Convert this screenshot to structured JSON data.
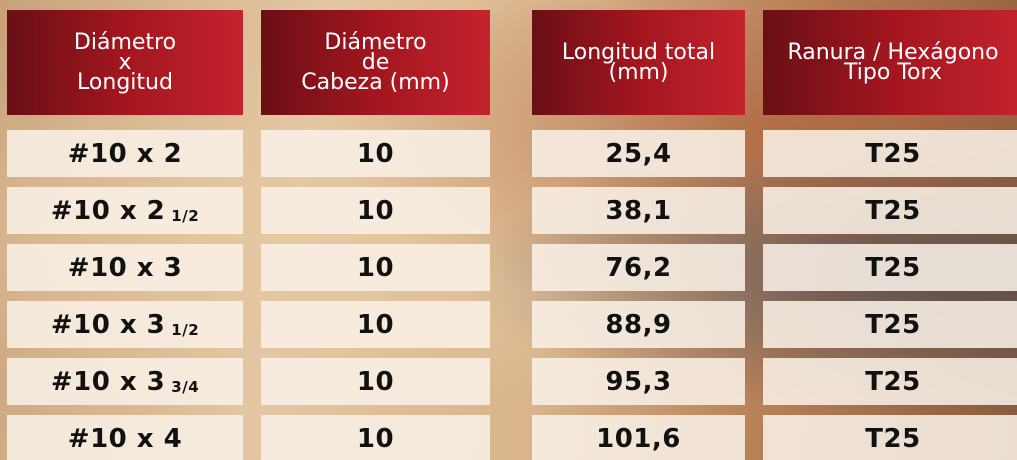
{
  "table": {
    "headers": [
      [
        "Diámetro",
        "x",
        "Longitud"
      ],
      [
        "Diámetro",
        "de",
        "Cabeza (mm)"
      ],
      [
        "Longitud total",
        "(mm)"
      ],
      [
        "Ranura / Hexágono",
        "Tipo Torx"
      ]
    ],
    "rows": [
      [
        {
          "text": "#10 x 2"
        },
        "10",
        "25,4",
        "T25"
      ],
      [
        {
          "text": "#10 x 2",
          "fraction": "1/2"
        },
        "10",
        "38,1",
        "T25"
      ],
      [
        {
          "text": "#10 x 3"
        },
        "10",
        "76,2",
        "T25"
      ],
      [
        {
          "text": "#10 x 3",
          "fraction": "1/2"
        },
        "10",
        "88,9",
        "T25"
      ],
      [
        {
          "text": "#10 x 3",
          "fraction": "3/4"
        },
        "10",
        "95,3",
        "T25"
      ],
      [
        {
          "text": "#10 x 4"
        },
        "10",
        "101,6",
        "T25"
      ]
    ]
  }
}
